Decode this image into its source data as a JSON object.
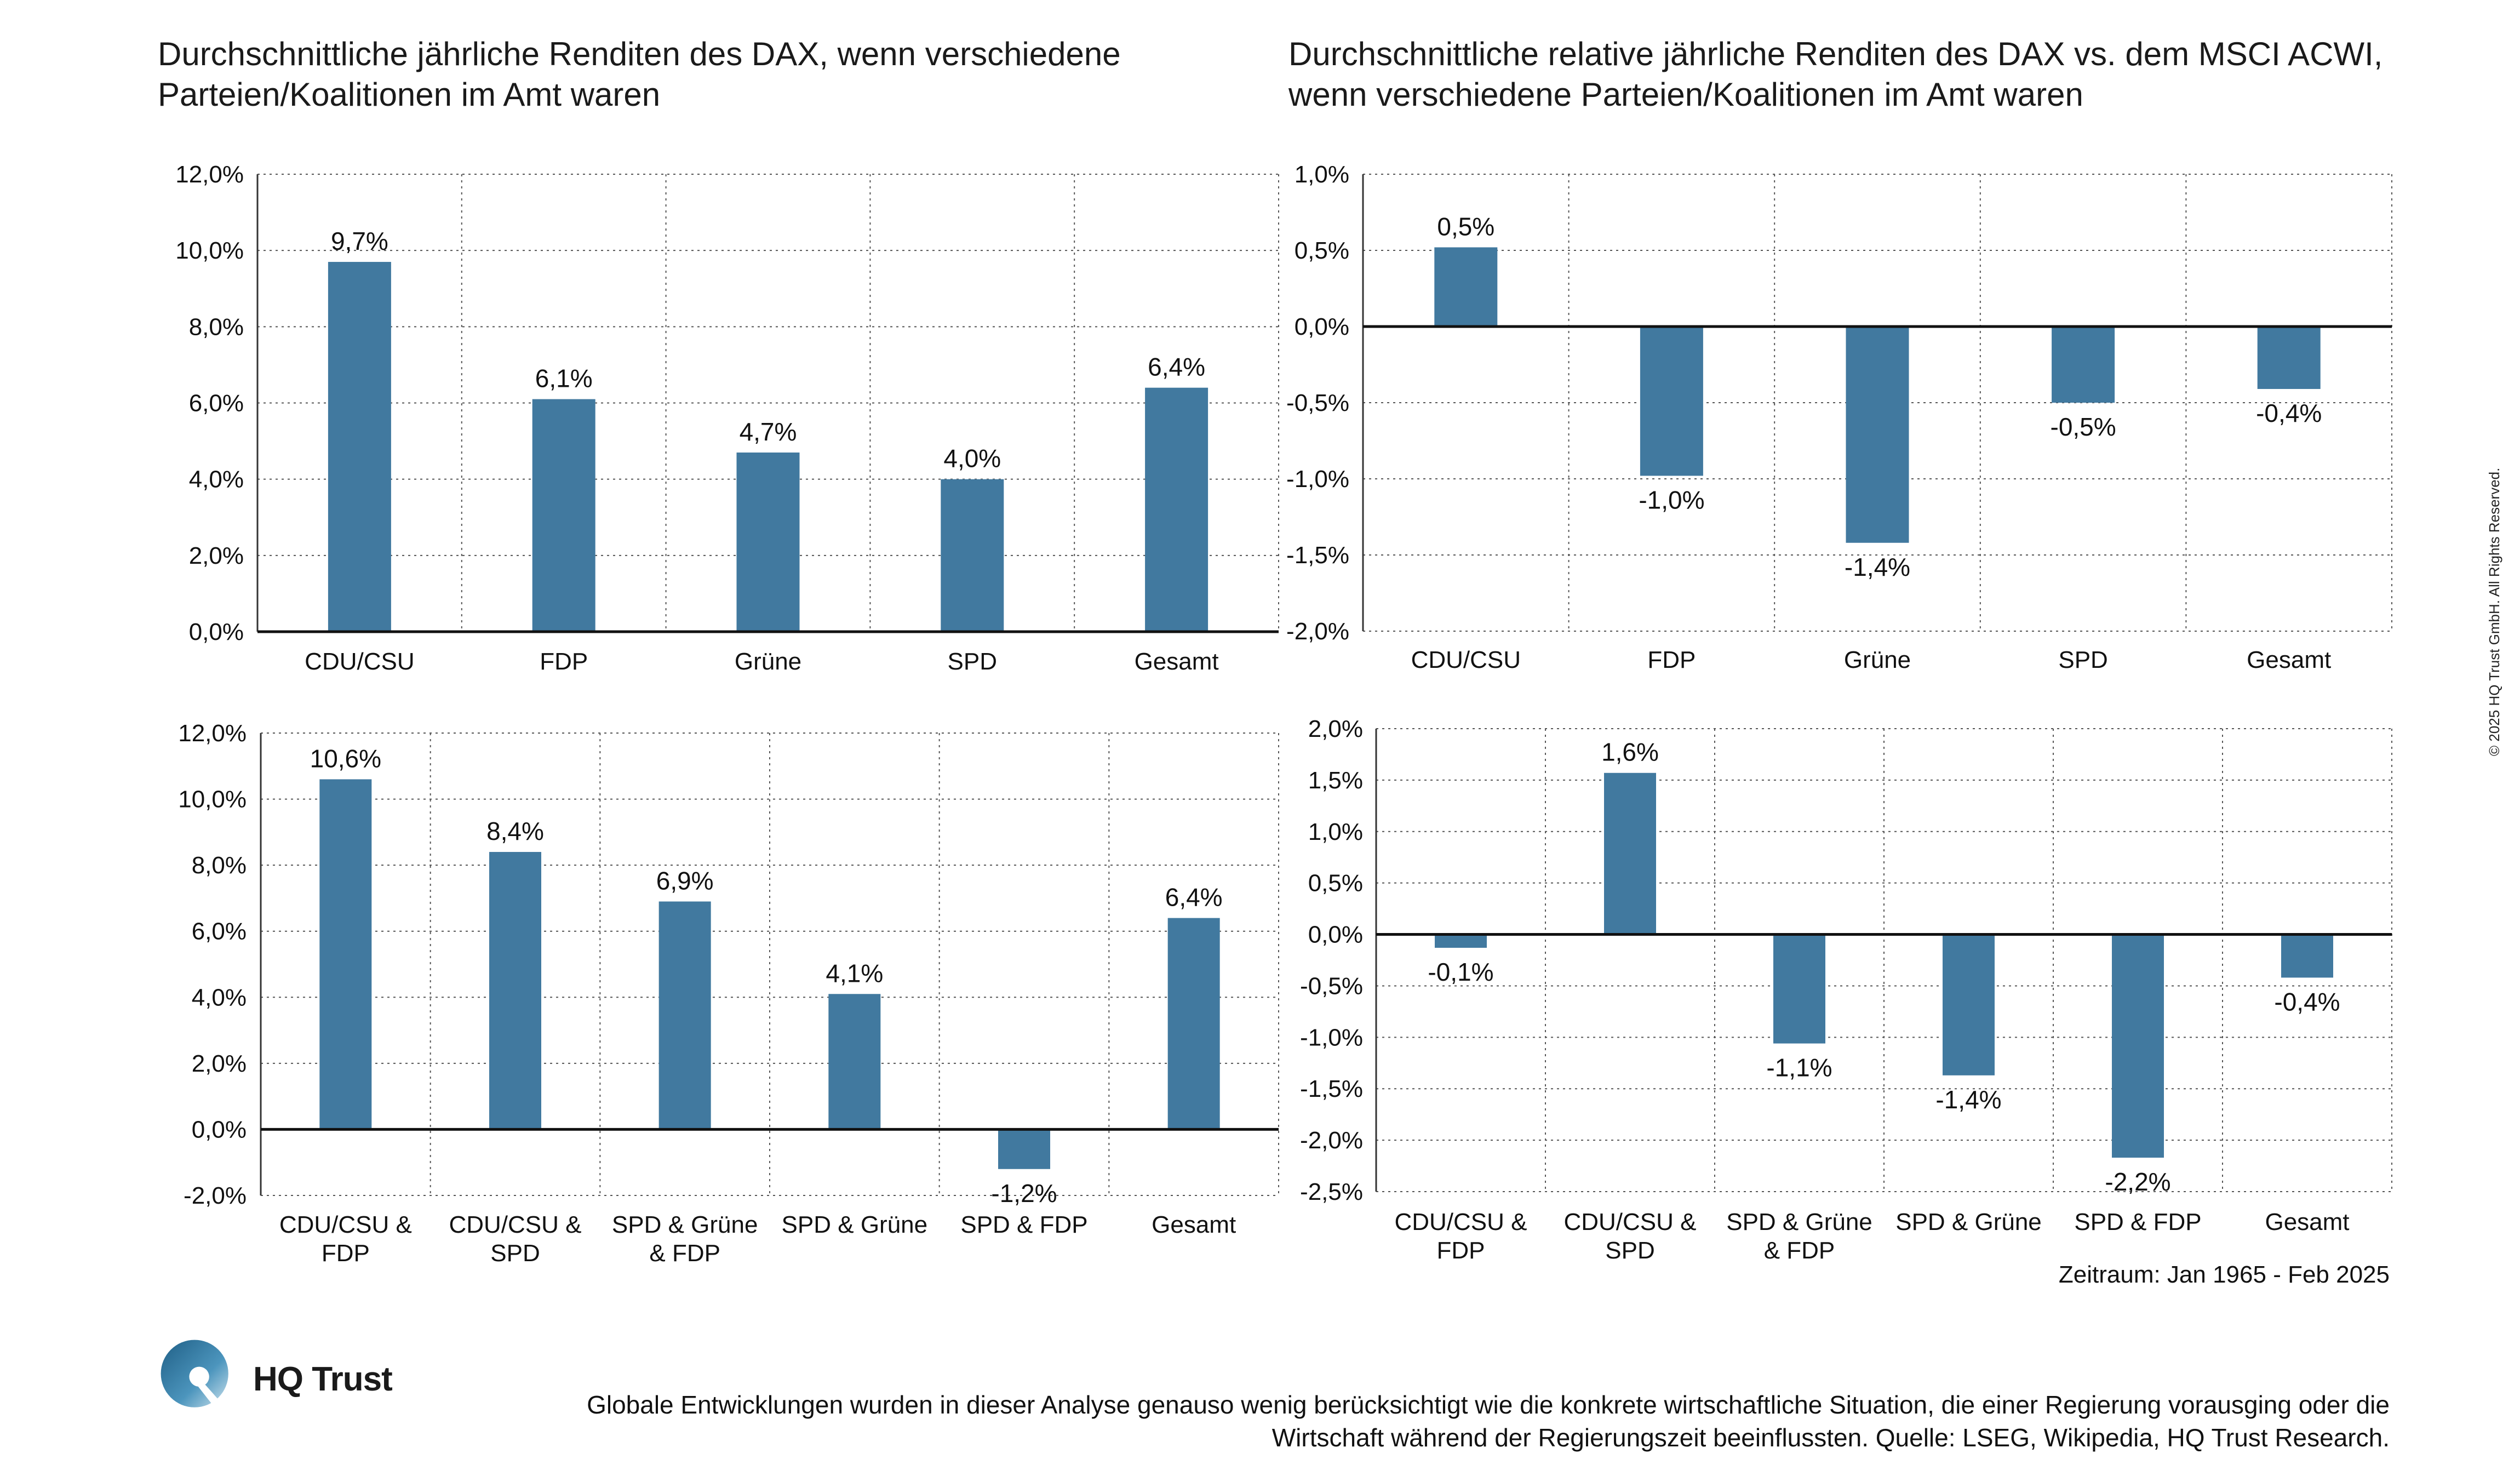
{
  "titles": {
    "left": "Durchschnittliche jährliche Renditen des DAX, wenn verschiedene Parteien/Koalitionen im Amt waren",
    "right": "Durchschnittliche relative jährliche Renditen des DAX vs. dem MSCI ACWI, wenn verschiedene Parteien/Koalitionen im Amt waren"
  },
  "period": "Zeitraum: Jan 1965 - Feb 2025",
  "footnote": "Globale Entwicklungen wurden in dieser Analyse genauso wenig berücksichtigt wie die konkrete wirtschaftliche Situation, die einer Regierung vorausging oder die Wirtschaft während der Regierungszeit beeinflussten. Quelle: LSEG, Wikipedia, HQ Trust Research.",
  "copyright": "© 2025 HQ Trust GmbH. All Rights Reserved.",
  "brand": {
    "name": "HQ Trust",
    "color": "#41799F",
    "logo_icon": "hq-trust-logo-icon"
  },
  "chart_data": [
    {
      "id": "top-left",
      "type": "bar",
      "categories": [
        "CDU/CSU",
        "FDP",
        "Grüne",
        "SPD",
        "Gesamt"
      ],
      "values": [
        9.7,
        6.1,
        4.7,
        4.0,
        6.4
      ],
      "data_labels": [
        "9,7%",
        "6,1%",
        "4,7%",
        "4,0%",
        "6,4%"
      ],
      "ylim": [
        0,
        12
      ],
      "yticks": [
        0,
        2,
        4,
        6,
        8,
        10,
        12
      ],
      "ytick_labels": [
        "0,0%",
        "2,0%",
        "4,0%",
        "6,0%",
        "8,0%",
        "10,0%",
        "12,0%"
      ],
      "bar_color": "#41799F",
      "grid": "dotted"
    },
    {
      "id": "top-right",
      "type": "bar",
      "categories": [
        "CDU/CSU",
        "FDP",
        "Grüne",
        "SPD",
        "Gesamt"
      ],
      "values": [
        0.52,
        -0.98,
        -1.42,
        -0.5,
        -0.41
      ],
      "data_labels": [
        "0,5%",
        "-1,0%",
        "-1,4%",
        "-0,5%",
        "-0,4%"
      ],
      "ylim": [
        -2,
        1
      ],
      "yticks": [
        -2,
        -1.5,
        -1,
        -0.5,
        0,
        0.5,
        1
      ],
      "ytick_labels": [
        "-2,0%",
        "-1,5%",
        "-1,0%",
        "-0,5%",
        "0,0%",
        "0,5%",
        "1,0%"
      ],
      "bar_color": "#41799F",
      "grid": "dotted"
    },
    {
      "id": "bottom-left",
      "type": "bar",
      "categories": [
        [
          "CDU/CSU &",
          "FDP"
        ],
        [
          "CDU/CSU &",
          "SPD"
        ],
        [
          "SPD & Grüne",
          "& FDP"
        ],
        [
          "SPD & Grüne"
        ],
        [
          "SPD & FDP"
        ],
        [
          "Gesamt"
        ]
      ],
      "values": [
        10.6,
        8.4,
        6.9,
        4.1,
        -1.2,
        6.4
      ],
      "data_labels": [
        "10,6%",
        "8,4%",
        "6,9%",
        "4,1%",
        "-1,2%",
        "6,4%"
      ],
      "ylim": [
        -2,
        12
      ],
      "yticks": [
        -2,
        0,
        2,
        4,
        6,
        8,
        10,
        12
      ],
      "ytick_labels": [
        "-2,0%",
        "0,0%",
        "2,0%",
        "4,0%",
        "6,0%",
        "8,0%",
        "10,0%",
        "12,0%"
      ],
      "bar_color": "#41799F",
      "grid": "dotted"
    },
    {
      "id": "bottom-right",
      "type": "bar",
      "categories": [
        [
          "CDU/CSU &",
          "FDP"
        ],
        [
          "CDU/CSU &",
          "SPD"
        ],
        [
          "SPD & Grüne",
          "& FDP"
        ],
        [
          "SPD & Grüne"
        ],
        [
          "SPD & FDP"
        ],
        [
          "Gesamt"
        ]
      ],
      "values": [
        -0.13,
        1.57,
        -1.06,
        -1.37,
        -2.17,
        -0.42
      ],
      "data_labels": [
        "-0,1%",
        "1,6%",
        "-1,1%",
        "-1,4%",
        "-2,2%",
        "-0,4%"
      ],
      "ylim": [
        -2.5,
        2
      ],
      "yticks": [
        -2.5,
        -2,
        -1.5,
        -1,
        -0.5,
        0,
        0.5,
        1,
        1.5,
        2
      ],
      "ytick_labels": [
        "-2,5%",
        "-2,0%",
        "-1,5%",
        "-1,0%",
        "-0,5%",
        "0,0%",
        "0,5%",
        "1,0%",
        "1,5%",
        "2,0%"
      ],
      "bar_color": "#41799F",
      "grid": "dotted"
    }
  ]
}
